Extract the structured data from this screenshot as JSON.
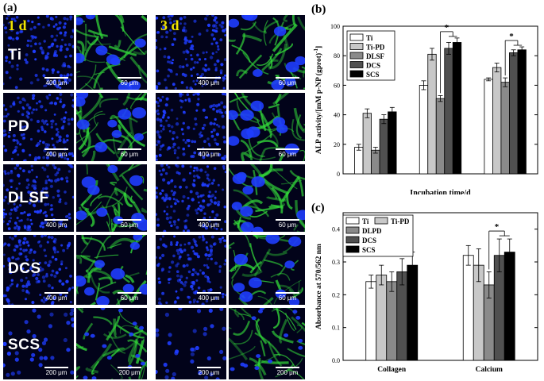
{
  "panel_a": {
    "label": "(a)",
    "day_labels": [
      "1 d",
      "3 d"
    ],
    "rows": [
      {
        "name": "Ti",
        "scales": [
          "400 μm",
          "60 μm",
          "400 μm",
          "60 μm"
        ]
      },
      {
        "name": "PD",
        "scales": [
          "400 μm",
          "60 μm",
          "400 μm",
          "60 μm"
        ]
      },
      {
        "name": "DLSF",
        "scales": [
          "400 μm",
          "60 μm",
          "400 μm",
          "60 μm"
        ]
      },
      {
        "name": "DCS",
        "scales": [
          "400 μm",
          "60 μm",
          "400 μm",
          "60 μm"
        ]
      },
      {
        "name": "SCS",
        "scales": [
          "200 μm",
          "200 μm",
          "200 μm",
          "200 μm"
        ]
      }
    ],
    "colors": {
      "nuclei": "#1f3dff",
      "cytoskeleton": "#33d93a",
      "background": "#02031a",
      "day_label": "#f2e400"
    }
  },
  "chart_data": [
    {
      "panel_label": "(b)",
      "type": "bar",
      "ylabel": "ALP activity/[mM p-NP (gprot)",
      "ylabel_sup": "-1",
      "ylabel_tail": "]",
      "xlabel": "Incubation time/d",
      "ylim": [
        0,
        100
      ],
      "yticks": [
        0,
        20,
        40,
        60,
        80,
        100
      ],
      "groups": 3,
      "legend_position": "top-left",
      "series": [
        {
          "name": "Ti",
          "color": "#ffffff",
          "values": [
            18,
            60,
            64
          ],
          "errors": [
            2,
            3,
            1
          ]
        },
        {
          "name": "Ti-PD",
          "color": "#c8c8c8",
          "values": [
            41,
            81,
            72
          ],
          "errors": [
            3,
            4,
            3
          ]
        },
        {
          "name": "DLSF",
          "color": "#8a8a8a",
          "values": [
            16,
            51,
            62
          ],
          "errors": [
            2,
            2,
            3
          ]
        },
        {
          "name": "DCS",
          "color": "#505050",
          "values": [
            37,
            85,
            82
          ],
          "errors": [
            3,
            4,
            2
          ]
        },
        {
          "name": "SCS",
          "color": "#000000",
          "values": [
            42,
            89,
            84
          ],
          "errors": [
            3,
            3,
            2
          ]
        }
      ],
      "significance": "*"
    },
    {
      "panel_label": "(c)",
      "type": "bar",
      "ylabel": "Absorbance at 570/562 nm",
      "xlabel": "",
      "categories": [
        "Collagen",
        "Calcium"
      ],
      "ylim": [
        0,
        0.45
      ],
      "yticks": [
        0.0,
        0.1,
        0.2,
        0.3,
        0.4
      ],
      "ytick_labels": [
        "0.0",
        "0.1",
        "0.2",
        "0.3",
        "0.4"
      ],
      "legend_position": "top-left",
      "series": [
        {
          "name": "Ti",
          "color": "#ffffff",
          "values": [
            0.24,
            0.32
          ],
          "errors": [
            0.02,
            0.03
          ]
        },
        {
          "name": "Ti-PD",
          "color": "#c8c8c8",
          "values": [
            0.26,
            0.29
          ],
          "errors": [
            0.03,
            0.05
          ]
        },
        {
          "name": "DLPD",
          "color": "#8a8a8a",
          "values": [
            0.24,
            0.23
          ],
          "errors": [
            0.03,
            0.04
          ]
        },
        {
          "name": "DCS",
          "color": "#505050",
          "values": [
            0.27,
            0.32
          ],
          "errors": [
            0.04,
            0.05
          ]
        },
        {
          "name": "SCS",
          "color": "#000000",
          "values": [
            0.29,
            0.33
          ],
          "errors": [
            0.04,
            0.04
          ]
        }
      ],
      "significance": "*"
    }
  ]
}
